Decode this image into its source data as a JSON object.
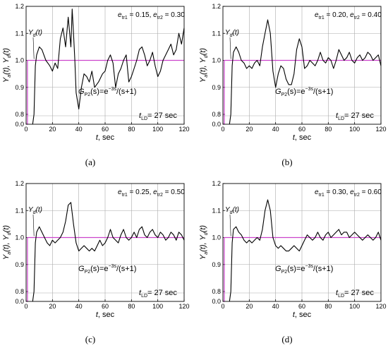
{
  "panels": [
    {
      "caption": "(a)",
      "ann": {
        "e1": "0.15",
        "e2": "0.30",
        "tld": "27 sec",
        "g_pre": "G",
        "g_sub": "P2",
        "g_mid": "(s)=e",
        "g_sup": "−3s",
        "g_post": "/(s+1)"
      },
      "yd_label": {
        "main": "Y",
        "sub": "d",
        "post": "(t)"
      },
      "chart_data": {
        "type": "line",
        "xlabel": "t, sec",
        "ylabel": "Ya(t), Yd(t)",
        "xlim": [
          0,
          120
        ],
        "ylim_broken": [
          [
            0,
            0.05
          ],
          [
            0.8,
            1.2
          ]
        ],
        "xticks": [
          "0",
          "20",
          "40",
          "60",
          "80",
          "100",
          "120"
        ],
        "yticks": [
          "0.0",
          "0.8",
          "0.9",
          "1.0",
          "1.1",
          "1.2"
        ],
        "series": [
          {
            "name": "Yd(t)",
            "x": [
              0,
              1,
              1,
              120
            ],
            "y": [
              0,
              0,
              1.0,
              1.0
            ]
          },
          {
            "name": "Ya(t)",
            "x": [
              5,
              6,
              7,
              8,
              10,
              12,
              15,
              18,
              20,
              22,
              24,
              26,
              28,
              30,
              32,
              34,
              35,
              36,
              37,
              38,
              40,
              42,
              44,
              46,
              48,
              50,
              52,
              55,
              58,
              60,
              62,
              64,
              66,
              68,
              70,
              72,
              74,
              76,
              78,
              80,
              82,
              84,
              86,
              88,
              90,
              92,
              94,
              96,
              98,
              100,
              102,
              104,
              106,
              108,
              110,
              112,
              114,
              116,
              118,
              120
            ],
            "y": [
              0.0,
              0.8,
              0.98,
              1.02,
              1.05,
              1.04,
              1.0,
              0.98,
              0.96,
              0.99,
              0.97,
              1.08,
              1.12,
              1.05,
              1.16,
              1.05,
              1.19,
              1.1,
              1.0,
              0.88,
              0.82,
              0.9,
              0.95,
              0.94,
              0.92,
              0.96,
              0.9,
              0.92,
              0.95,
              0.96,
              1.0,
              1.02,
              0.99,
              0.9,
              0.95,
              0.97,
              1.0,
              1.02,
              0.92,
              0.94,
              0.97,
              1.0,
              1.04,
              1.05,
              1.02,
              0.98,
              1.0,
              1.03,
              0.98,
              0.94,
              0.96,
              1.0,
              1.02,
              1.04,
              1.06,
              1.02,
              1.04,
              1.1,
              1.06,
              1.12
            ]
          }
        ]
      }
    },
    {
      "caption": "(b)",
      "ann": {
        "e1": "0.20",
        "e2": "0.40",
        "tld": "27 sec",
        "g_pre": "G",
        "g_sub": "P2",
        "g_mid": "(s)=e",
        "g_sup": "−3s",
        "g_post": "/(s+1)"
      },
      "yd_label": {
        "main": "Y",
        "sub": "d",
        "post": "(t)"
      },
      "chart_data": {
        "type": "line",
        "xlabel": "t, sec",
        "ylabel": "Ya(t), Yd(t)",
        "xlim": [
          0,
          120
        ],
        "ylim_broken": [
          [
            0,
            0.05
          ],
          [
            0.8,
            1.2
          ]
        ],
        "xticks": [
          "0",
          "20",
          "40",
          "60",
          "80",
          "100",
          "120"
        ],
        "yticks": [
          "0.0",
          "0.8",
          "0.9",
          "1.0",
          "1.1",
          "1.2"
        ],
        "series": [
          {
            "name": "Yd(t)",
            "x": [
              0,
              1,
              1,
              120
            ],
            "y": [
              0,
              0,
              1.0,
              1.0
            ]
          },
          {
            "name": "Ya(t)",
            "x": [
              5,
              6,
              7,
              8,
              10,
              12,
              14,
              16,
              18,
              20,
              22,
              24,
              26,
              28,
              30,
              32,
              34,
              36,
              38,
              40,
              42,
              44,
              46,
              48,
              50,
              52,
              54,
              56,
              58,
              60,
              62,
              64,
              66,
              68,
              70,
              72,
              74,
              76,
              78,
              80,
              82,
              84,
              86,
              88,
              90,
              92,
              94,
              96,
              98,
              100,
              102,
              104,
              106,
              108,
              110,
              112,
              114,
              116,
              118,
              120
            ],
            "y": [
              0.0,
              0.8,
              0.98,
              1.03,
              1.05,
              1.03,
              1.0,
              0.99,
              0.97,
              0.98,
              0.97,
              0.99,
              1.0,
              0.98,
              1.05,
              1.1,
              1.15,
              1.1,
              0.96,
              0.9,
              0.95,
              0.98,
              0.97,
              0.93,
              0.91,
              0.91,
              0.95,
              1.04,
              1.08,
              1.05,
              0.97,
              0.98,
              1.0,
              0.99,
              0.98,
              1.0,
              1.03,
              1.0,
              0.99,
              1.01,
              1.0,
              0.97,
              1.0,
              1.04,
              1.02,
              1.0,
              1.01,
              1.03,
              1.0,
              0.99,
              1.01,
              1.02,
              1.0,
              1.01,
              1.03,
              1.02,
              1.0,
              1.01,
              1.02,
              0.98
            ]
          }
        ]
      }
    },
    {
      "caption": "(c)",
      "ann": {
        "e1": "0.25",
        "e2": "0.50",
        "tld": "27 sec",
        "g_pre": "G",
        "g_sub": "P2",
        "g_mid": "(s)=e",
        "g_sup": "−3s",
        "g_post": "/(s+1)"
      },
      "yd_label": {
        "main": "Y",
        "sub": "d",
        "post": "(t)"
      },
      "chart_data": {
        "type": "line",
        "xlabel": "t, sec",
        "ylabel": "Ya(t), Yd(t)",
        "xlim": [
          0,
          120
        ],
        "ylim_broken": [
          [
            0,
            0.05
          ],
          [
            0.8,
            1.2
          ]
        ],
        "xticks": [
          "0",
          "20",
          "40",
          "60",
          "80",
          "100",
          "120"
        ],
        "yticks": [
          "0.0",
          "0.8",
          "0.9",
          "1.0",
          "1.1",
          "1.2"
        ],
        "series": [
          {
            "name": "Yd(t)",
            "x": [
              0,
              1,
              1,
              120
            ],
            "y": [
              0,
              0,
              1.0,
              1.0
            ]
          },
          {
            "name": "Ya(t)",
            "x": [
              5,
              6,
              7,
              8,
              10,
              12,
              14,
              16,
              18,
              20,
              22,
              24,
              26,
              28,
              30,
              32,
              34,
              36,
              38,
              40,
              42,
              44,
              46,
              48,
              50,
              52,
              54,
              56,
              58,
              60,
              62,
              64,
              66,
              68,
              70,
              72,
              74,
              76,
              78,
              80,
              82,
              84,
              86,
              88,
              90,
              92,
              94,
              96,
              98,
              100,
              102,
              104,
              106,
              108,
              110,
              112,
              114,
              116,
              118,
              120
            ],
            "y": [
              0.0,
              0.8,
              0.98,
              1.02,
              1.04,
              1.02,
              1.0,
              0.98,
              0.97,
              0.99,
              0.98,
              0.99,
              1.0,
              1.02,
              1.06,
              1.12,
              1.13,
              1.05,
              0.98,
              0.95,
              0.96,
              0.97,
              0.96,
              0.95,
              0.96,
              0.95,
              0.97,
              0.99,
              0.97,
              0.98,
              1.0,
              1.03,
              1.0,
              0.99,
              0.98,
              1.01,
              1.03,
              1.0,
              0.99,
              1.0,
              1.02,
              1.0,
              1.03,
              1.04,
              1.01,
              1.0,
              1.02,
              1.03,
              1.01,
              1.0,
              1.02,
              1.01,
              0.99,
              1.0,
              1.02,
              1.01,
              0.99,
              1.02,
              1.01,
              0.99
            ]
          }
        ]
      }
    },
    {
      "caption": "(d)",
      "ann": {
        "e1": "0.30",
        "e2": "0.60",
        "tld": "27 sec",
        "g_pre": "G",
        "g_sub": "P2",
        "g_mid": "(s)=e",
        "g_sup": "−3s",
        "g_post": "/(s+1)"
      },
      "yd_label": {
        "main": "Y",
        "sub": "d",
        "post": "(t)"
      },
      "chart_data": {
        "type": "line",
        "xlabel": "t, sec",
        "ylabel": "Ya(t), Yd(t)",
        "xlim": [
          0,
          120
        ],
        "ylim_broken": [
          [
            0,
            0.05
          ],
          [
            0.8,
            1.2
          ]
        ],
        "xticks": [
          "0",
          "20",
          "40",
          "60",
          "80",
          "100",
          "120"
        ],
        "yticks": [
          "0.0",
          "0.8",
          "0.9",
          "1.0",
          "1.1",
          "1.2"
        ],
        "series": [
          {
            "name": "Yd(t)",
            "x": [
              0,
              1,
              1,
              120
            ],
            "y": [
              0,
              0,
              1.0,
              1.0
            ]
          },
          {
            "name": "Ya(t)",
            "x": [
              5,
              6,
              7,
              8,
              10,
              12,
              14,
              16,
              18,
              20,
              22,
              24,
              26,
              28,
              30,
              32,
              34,
              36,
              38,
              40,
              42,
              44,
              46,
              48,
              50,
              52,
              54,
              56,
              58,
              60,
              62,
              64,
              66,
              68,
              70,
              72,
              74,
              76,
              78,
              80,
              82,
              84,
              86,
              88,
              90,
              92,
              94,
              96,
              98,
              100,
              102,
              104,
              106,
              108,
              110,
              112,
              114,
              116,
              118,
              120
            ],
            "y": [
              0.0,
              0.8,
              0.98,
              1.03,
              1.04,
              1.02,
              1.01,
              0.99,
              0.98,
              0.99,
              0.98,
              0.99,
              1.0,
              0.99,
              1.03,
              1.1,
              1.14,
              1.1,
              1.0,
              0.97,
              0.96,
              0.97,
              0.96,
              0.95,
              0.95,
              0.96,
              0.97,
              0.96,
              0.95,
              0.97,
              0.99,
              1.01,
              1.0,
              0.99,
              1.0,
              1.02,
              1.0,
              0.99,
              1.01,
              1.02,
              1.0,
              1.01,
              1.02,
              1.03,
              1.01,
              1.02,
              1.02,
              1.0,
              1.01,
              1.02,
              1.01,
              1.0,
              0.99,
              1.0,
              1.01,
              1.0,
              0.99,
              1.0,
              1.02,
              0.99
            ]
          }
        ]
      }
    }
  ],
  "colors": {
    "yd_line": "#cc44cc",
    "ya_line": "#000000",
    "grid": "#aaaaaa"
  }
}
